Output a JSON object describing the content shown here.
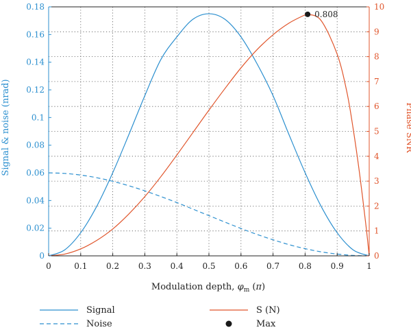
{
  "chart_data": {
    "type": "line",
    "xlabel": "Modulation depth, φm (π)",
    "ylabel_left": "Signal & noise (nrad)",
    "ylabel_right": "Phase SNR",
    "xlim": [
      0,
      1
    ],
    "ylim_left": [
      0,
      0.18
    ],
    "ylim_right": [
      0,
      10
    ],
    "x_ticks": [
      "0",
      "0.1",
      "0.2",
      "0.3",
      "0.4",
      "0.5",
      "0.6",
      "0.7",
      "0.8",
      "0.9",
      "1"
    ],
    "y_left_ticks": [
      "0",
      "0.02",
      "0.04",
      "0.06",
      "0.08",
      "0.1",
      "0.12",
      "0.14",
      "0.16",
      "0.18"
    ],
    "y_right_ticks": [
      "0",
      "1",
      "2",
      "3",
      "4",
      "5",
      "6",
      "7",
      "8",
      "9",
      "10"
    ],
    "grid": true,
    "series": [
      {
        "name": "Signal",
        "axis": "left",
        "color": "#2b8fcf",
        "style": "solid",
        "x": [
          0,
          0.05,
          0.1,
          0.15,
          0.2,
          0.25,
          0.3,
          0.35,
          0.4,
          0.45,
          0.5,
          0.55,
          0.6,
          0.65,
          0.7,
          0.75,
          0.8,
          0.85,
          0.9,
          0.95,
          1
        ],
        "y": [
          0,
          0.0043,
          0.0167,
          0.0358,
          0.0601,
          0.0875,
          0.1158,
          0.1419,
          0.1583,
          0.171,
          0.175,
          0.171,
          0.1583,
          0.1389,
          0.1158,
          0.0875,
          0.0601,
          0.0358,
          0.0167,
          0.0043,
          0
        ]
      },
      {
        "name": "Noise",
        "axis": "left",
        "color": "#2b8fcf",
        "style": "dashed",
        "x": [
          0,
          0.05,
          0.1,
          0.15,
          0.2,
          0.25,
          0.3,
          0.35,
          0.4,
          0.45,
          0.5,
          0.55,
          0.6,
          0.65,
          0.7,
          0.75,
          0.8,
          0.85,
          0.9,
          0.95,
          1
        ],
        "y": [
          0.06,
          0.0596,
          0.0584,
          0.0565,
          0.0539,
          0.0507,
          0.047,
          0.0429,
          0.0385,
          0.0338,
          0.0291,
          0.0244,
          0.0198,
          0.0155,
          0.0116,
          0.0081,
          0.0052,
          0.0029,
          0.0013,
          0.0003,
          0
        ]
      },
      {
        "name": "S (N)",
        "axis": "right",
        "color": "#e0552b",
        "style": "solid",
        "x": [
          0,
          0.05,
          0.1,
          0.15,
          0.2,
          0.25,
          0.3,
          0.35,
          0.4,
          0.45,
          0.5,
          0.55,
          0.6,
          0.65,
          0.7,
          0.75,
          0.8,
          0.808,
          0.85,
          0.9,
          0.93,
          0.95,
          0.97,
          0.99,
          1
        ],
        "y": [
          0,
          0.07,
          0.28,
          0.62,
          1.08,
          1.68,
          2.38,
          3.18,
          4.05,
          4.95,
          5.85,
          6.72,
          7.55,
          8.28,
          8.88,
          9.35,
          9.68,
          9.7,
          9.45,
          8.1,
          6.6,
          5.1,
          3.3,
          1.2,
          0
        ]
      }
    ],
    "max_point": {
      "x": 0.808,
      "y": 9.7,
      "label": "0.808"
    },
    "legend": [
      {
        "label": "Signal",
        "style": "solid",
        "color": "#2b8fcf",
        "position": "bottom-left"
      },
      {
        "label": "Noise",
        "style": "dashed",
        "color": "#2b8fcf",
        "position": "bottom-left"
      },
      {
        "label": "S (N)",
        "style": "solid",
        "color": "#e0552b",
        "position": "bottom-right"
      },
      {
        "label": "Max",
        "style": "marker",
        "color": "#1a1a1a",
        "position": "bottom-right"
      }
    ]
  }
}
